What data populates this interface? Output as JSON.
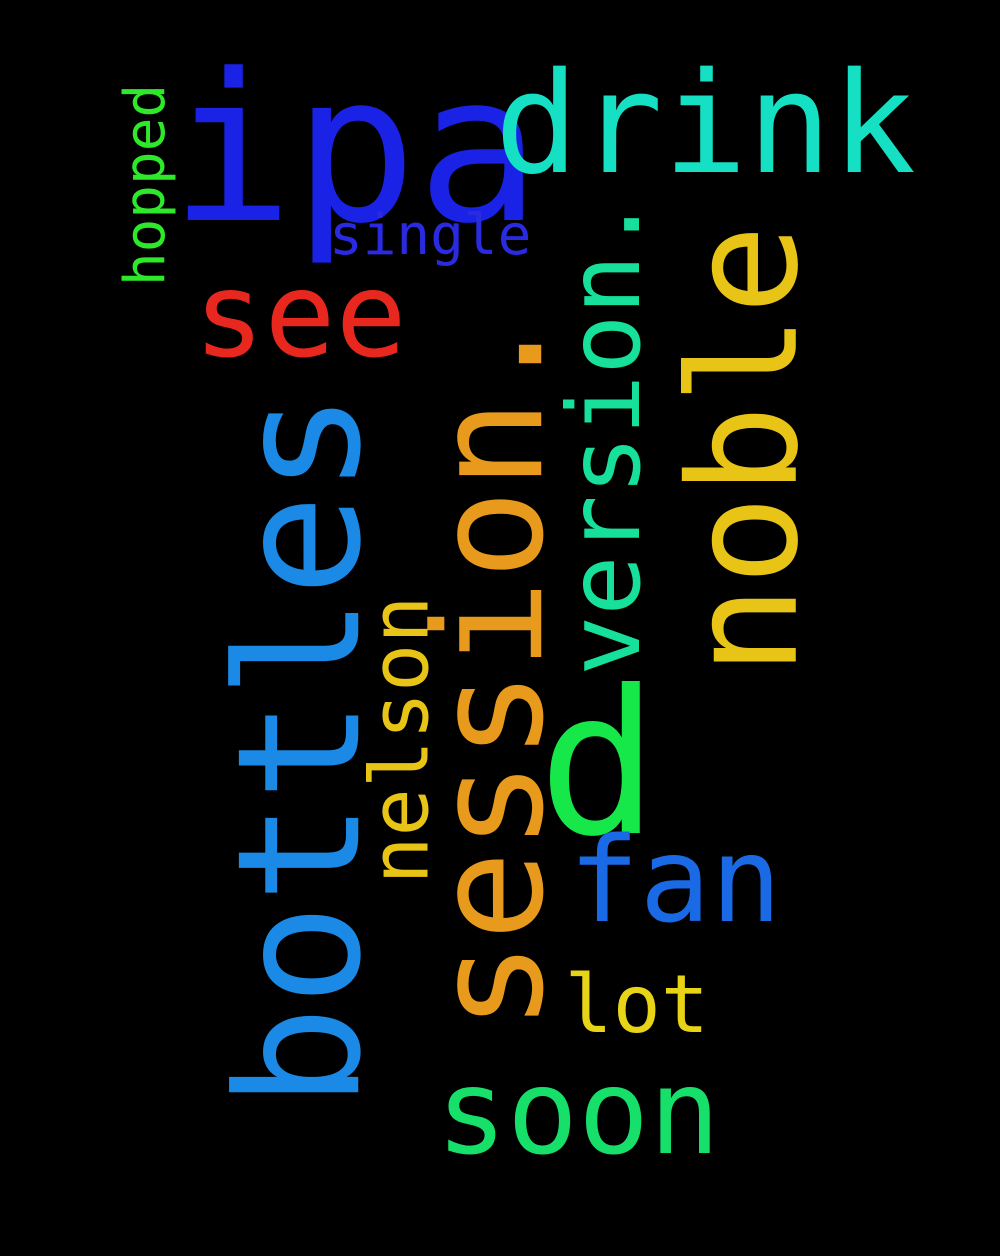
{
  "background": "#000000",
  "words": [
    {
      "key": "ipa",
      "text": "ipa",
      "color": "#1a22e6",
      "orientation": "horizontal"
    },
    {
      "key": "drink",
      "text": "drink",
      "color": "#16e0c4",
      "orientation": "horizontal"
    },
    {
      "key": "see",
      "text": "see",
      "color": "#e8281e",
      "orientation": "horizontal"
    },
    {
      "key": "single",
      "text": "single",
      "color": "#2a2ae0",
      "orientation": "horizontal"
    },
    {
      "key": "hopped",
      "text": "hopped",
      "color": "#2ee82a",
      "orientation": "vertical"
    },
    {
      "key": "session",
      "text": "session.",
      "color": "#e89a1c",
      "orientation": "vertical"
    },
    {
      "key": "noble",
      "text": "noble",
      "color": "#e8c416",
      "orientation": "vertical"
    },
    {
      "key": "version",
      "text": "version.",
      "color": "#16e09a",
      "orientation": "vertical"
    },
    {
      "key": "bottles",
      "text": "bottles",
      "color": "#1a8ae6",
      "orientation": "vertical"
    },
    {
      "key": "nelson",
      "text": "nelson",
      "color": "#e8c416",
      "orientation": "vertical"
    },
    {
      "key": "d",
      "text": "d",
      "color": "#16e84a",
      "orientation": "horizontal"
    },
    {
      "key": "fan",
      "text": "fan",
      "color": "#1a6ae6",
      "orientation": "horizontal"
    },
    {
      "key": "lot",
      "text": "lot",
      "color": "#e8d416",
      "orientation": "horizontal"
    },
    {
      "key": "soon",
      "text": "soon",
      "color": "#16e06a",
      "orientation": "horizontal"
    }
  ]
}
